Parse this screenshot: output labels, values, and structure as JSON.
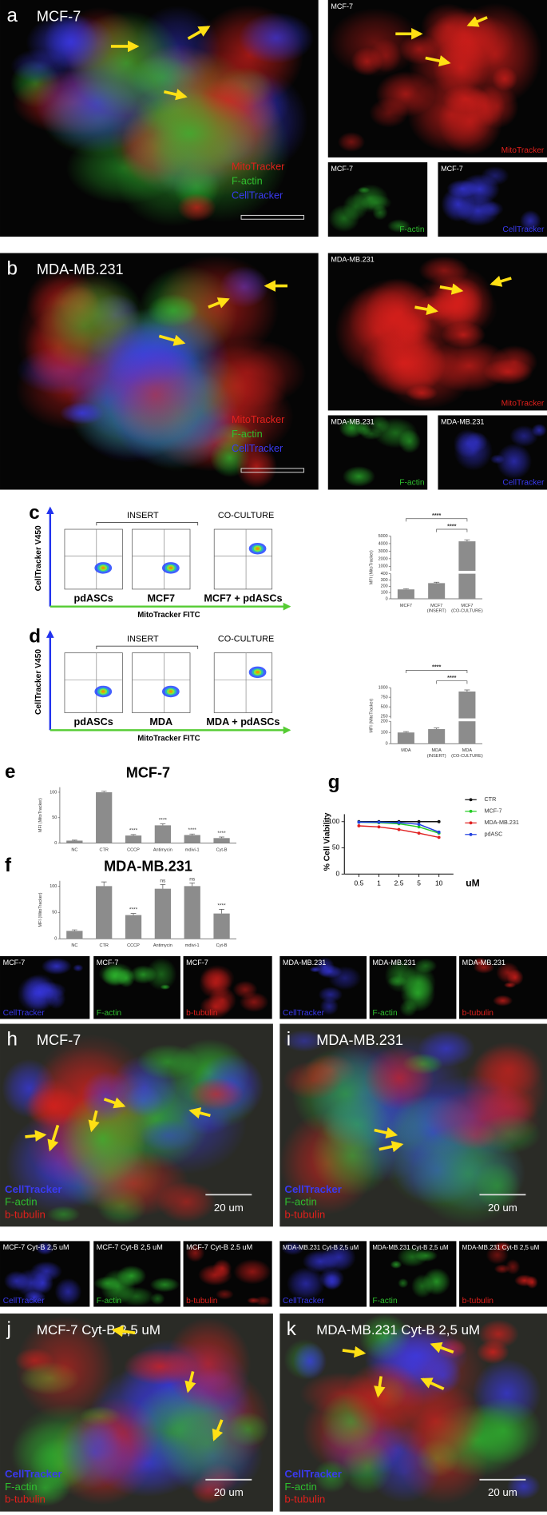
{
  "images": [
    {
      "letter": "a",
      "title": "MCF-7",
      "legend": [
        {
          "text": "MitoTracker",
          "color": "#e0201c"
        },
        {
          "text": "F-actin",
          "color": "#2fbf2f"
        },
        {
          "text": "CellTracker",
          "color": "#3a3af0"
        }
      ]
    },
    {
      "title": "MCF-7",
      "channel": {
        "text": "MitoTracker",
        "color": "#e0201c"
      }
    },
    {
      "title": "MCF-7",
      "channel": {
        "text": "F-actin",
        "color": "#2fbf2f"
      }
    },
    {
      "title": "MCF-7",
      "channel": {
        "text": "CellTracker",
        "color": "#3a3af0"
      }
    },
    {
      "letter": "b",
      "title": "MDA-MB.231",
      "legend": [
        {
          "text": "MitoTracker",
          "color": "#e0201c"
        },
        {
          "text": "F-actin",
          "color": "#2fbf2f"
        },
        {
          "text": "CellTracker",
          "color": "#3a3af0"
        }
      ]
    },
    {
      "title": "MDA-MB.231",
      "channel": {
        "text": "MitoTracker",
        "color": "#e0201c"
      }
    },
    {
      "title": "MDA-MB.231",
      "channel": {
        "text": "F-actin",
        "color": "#2fbf2f"
      }
    },
    {
      "title": "MDA-MB.231",
      "channel": {
        "text": "CellTracker",
        "color": "#3a3af0"
      }
    },
    {
      "title": "MCF-7",
      "channel": {
        "text": "CellTracker",
        "color": "#3a3af0"
      }
    },
    {
      "title": "MCF-7",
      "channel": {
        "text": "F-actin",
        "color": "#2fbf2f"
      }
    },
    {
      "title": "MCF-7",
      "channel": {
        "text": "b-tubulin",
        "color": "#e0201c"
      }
    },
    {
      "title": "MDA-MB.231",
      "channel": {
        "text": "CellTracker",
        "color": "#3a3af0"
      }
    },
    {
      "title": "MDA-MB.231",
      "channel": {
        "text": "F-actin",
        "color": "#2fbf2f"
      }
    },
    {
      "title": "MDA-MB.231",
      "channel": {
        "text": "b-tubulin",
        "color": "#e0201c"
      }
    },
    {
      "letter": "h",
      "title": "MCF-7",
      "legend": [
        {
          "text": "CellTracker",
          "color": "#3a3af0"
        },
        {
          "text": "F-actin",
          "color": "#2fbf2f"
        },
        {
          "text": "b-tubulin",
          "color": "#e0201c"
        }
      ],
      "scale": "20 um"
    },
    {
      "letter": "i",
      "title": "MDA-MB.231",
      "legend": [
        {
          "text": "CellTracker",
          "color": "#3a3af0"
        },
        {
          "text": "F-actin",
          "color": "#2fbf2f"
        },
        {
          "text": "b-tubulin",
          "color": "#e0201c"
        }
      ],
      "scale": "20 um"
    },
    {
      "title": "MCF-7 Cyt-B 2,5 uM",
      "channel": {
        "text": "CellTracker",
        "color": "#3a3af0"
      }
    },
    {
      "title": "MCF-7 Cyt-B 2,5 uM",
      "channel": {
        "text": "F-actin",
        "color": "#2fbf2f"
      }
    },
    {
      "title": "MCF-7 Cyt-B 2.5 uM",
      "channel": {
        "text": "b-tubulin",
        "color": "#e0201c"
      }
    },
    {
      "title": "MDA-MB.231 Cyt-B 2,5 uM",
      "channel": {
        "text": "CellTracker",
        "color": "#3a3af0"
      }
    },
    {
      "title": "MDA-MB.231 Cyt-B 2,5 uM",
      "channel": {
        "text": "F-actin",
        "color": "#2fbf2f"
      }
    },
    {
      "title": "MDA-MB.231 Cyt-B 2,5 uM",
      "channel": {
        "text": "b-tubulin",
        "color": "#e0201c"
      }
    },
    {
      "letter": "j",
      "title": "MCF-7 Cyt-B 2,5 uM",
      "legend": [
        {
          "text": "CellTracker",
          "color": "#3a3af0"
        },
        {
          "text": "F-actin",
          "color": "#2fbf2f"
        },
        {
          "text": "b-tubulin",
          "color": "#e0201c"
        }
      ],
      "scale": "20 um"
    },
    {
      "letter": "k",
      "title": "MDA-MB.231 Cyt-B 2,5 uM",
      "legend": [
        {
          "text": "CellTracker",
          "color": "#3a3af0"
        },
        {
          "text": "F-actin",
          "color": "#2fbf2f"
        },
        {
          "text": "b-tubulin",
          "color": "#e0201c"
        }
      ],
      "scale": "20 um"
    }
  ],
  "flow": [
    {
      "letter": "c",
      "insert": "INSERT",
      "coculture": "CO-CULTURE",
      "ylabel": "CellTracker V450",
      "xlabel": "MitoTracker FITC",
      "samples": [
        "pdASCs",
        "MCF7",
        "MCF7 + pdASCs"
      ]
    },
    {
      "letter": "d",
      "insert": "INSERT",
      "coculture": "CO-CULTURE",
      "ylabel": "CellTracker V450",
      "xlabel": "MitoTracker FITC",
      "samples": [
        "pdASCs",
        "MDA",
        "MDA + pdASCs"
      ]
    }
  ],
  "chart_data": [
    {
      "type": "bar",
      "ylabel": "MFI (MitoTracker)",
      "categories": [
        [
          "MCF7"
        ],
        [
          "MCF7",
          "(INSERT)"
        ],
        [
          "MCF7",
          "(CO-CULTURE)"
        ]
      ],
      "values": [
        150,
        250,
        4300
      ],
      "errors": [
        10,
        15,
        200
      ],
      "color": "#8c8c8c",
      "ysegments": [
        [
          0,
          400
        ],
        [
          400,
          5000
        ]
      ],
      "yticks": [
        0,
        100,
        200,
        300,
        400,
        1000,
        2000,
        3000,
        4000,
        5000
      ],
      "brackets": [
        "****",
        "****"
      ]
    },
    {
      "type": "bar",
      "ylabel": "MFI (MitoTracker)",
      "categories": [
        [
          "MDA"
        ],
        [
          "MDA",
          "(INSERT)"
        ],
        [
          "MDA",
          "(CO-CULTURE)"
        ]
      ],
      "values": [
        100,
        130,
        900
      ],
      "errors": [
        8,
        10,
        40
      ],
      "color": "#8c8c8c",
      "ysegments": [
        [
          0,
          200
        ],
        [
          200,
          1000
        ]
      ],
      "yticks": [
        0,
        100,
        200,
        250,
        500,
        750,
        1000
      ],
      "brackets": [
        "****",
        "****"
      ]
    },
    {
      "type": "bar",
      "panel": "e",
      "title": "MCF-7",
      "ylabel": "MFI (MitoTracker)",
      "categories": [
        [
          "NC"
        ],
        [
          "CTR"
        ],
        [
          "CCCP"
        ],
        [
          "Antimycin"
        ],
        [
          "mdivi-1"
        ],
        [
          "Cyt-B"
        ]
      ],
      "values": [
        5,
        100,
        15,
        35,
        16,
        10
      ],
      "errors": [
        1,
        2,
        2,
        3,
        2,
        2
      ],
      "color": "#8c8c8c",
      "ylim": [
        0,
        110
      ],
      "yticks": [
        0,
        50,
        100
      ],
      "significance": [
        null,
        null,
        "****",
        "****",
        "****",
        "****"
      ]
    },
    {
      "type": "bar",
      "panel": "f",
      "title": "MDA-MB.231",
      "ylabel": "MFI (MitoTracker)",
      "categories": [
        [
          "NC"
        ],
        [
          "CTR"
        ],
        [
          "CCCP"
        ],
        [
          "Antimycin"
        ],
        [
          "mdivi-1"
        ],
        [
          "Cyt-B"
        ]
      ],
      "values": [
        15,
        100,
        45,
        95,
        100,
        48
      ],
      "errors": [
        2,
        8,
        3,
        8,
        6,
        8
      ],
      "color": "#8c8c8c",
      "ylim": [
        0,
        110
      ],
      "yticks": [
        0,
        50,
        100
      ],
      "significance": [
        null,
        null,
        "****",
        "ns",
        "ns",
        "****"
      ]
    },
    {
      "type": "line",
      "panel": "g",
      "ylabel": "% Cell Viability",
      "xlabel": "uM",
      "categories": [
        "0.5",
        "1",
        "2.5",
        "5",
        "10"
      ],
      "ylim": [
        0,
        105
      ],
      "yticks": [
        0,
        50,
        100
      ],
      "series": [
        {
          "name": "CTR",
          "color": "#111111",
          "values": [
            100,
            100,
            100,
            100,
            100
          ]
        },
        {
          "name": "MCF-7",
          "color": "#22cc22",
          "values": [
            99,
            98,
            96,
            90,
            78
          ]
        },
        {
          "name": "MDA-MB.231",
          "color": "#e02020",
          "values": [
            92,
            90,
            85,
            78,
            70
          ]
        },
        {
          "name": "pdASC",
          "color": "#2040e0",
          "values": [
            99,
            99,
            98,
            95,
            80
          ]
        }
      ]
    }
  ]
}
